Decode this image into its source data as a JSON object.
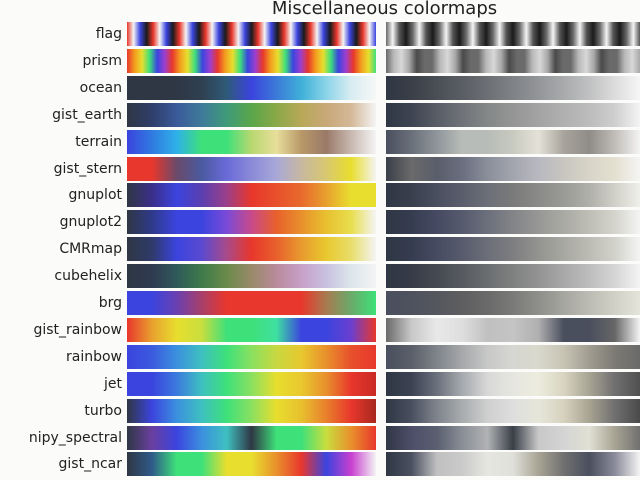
{
  "title": "Miscellaneous colormaps",
  "colormaps": [
    {
      "name": "flag",
      "stops": [
        "#e8372c",
        "#f4f4f4",
        "#3b44de",
        "#1b1b1b",
        "#e8372c",
        "#f4f4f4",
        "#3b44de",
        "#1b1b1b",
        "#e8372c",
        "#f4f4f4",
        "#3b44de",
        "#1b1b1b",
        "#e8372c",
        "#f4f4f4",
        "#3b44de",
        "#1b1b1b",
        "#e8372c",
        "#f4f4f4",
        "#3b44de",
        "#1b1b1b",
        "#e8372c",
        "#f4f4f4",
        "#3b44de",
        "#1b1b1b",
        "#e8372c",
        "#f4f4f4",
        "#3b44de",
        "#1b1b1b",
        "#e8372c",
        "#f4f4f4",
        "#3b44de",
        "#1b1b1b",
        "#e8372c",
        "#f4f4f4",
        "#3b44de",
        "#1b1b1b",
        "#e8372c",
        "#f4f4f4",
        "#3b44de"
      ],
      "grays": [
        "#6a6a6a",
        "#f4f4f4",
        "#555555",
        "#1b1b1b",
        "#6a6a6a",
        "#f4f4f4",
        "#555555",
        "#1b1b1b",
        "#6a6a6a",
        "#f4f4f4",
        "#555555",
        "#1b1b1b",
        "#6a6a6a",
        "#f4f4f4",
        "#555555",
        "#1b1b1b",
        "#6a6a6a",
        "#f4f4f4",
        "#555555",
        "#1b1b1b",
        "#6a6a6a",
        "#f4f4f4",
        "#555555",
        "#1b1b1b",
        "#6a6a6a",
        "#f4f4f4",
        "#555555",
        "#1b1b1b",
        "#6a6a6a",
        "#f4f4f4",
        "#555555",
        "#1b1b1b",
        "#6a6a6a",
        "#f4f4f4",
        "#555555",
        "#1b1b1b",
        "#6a6a6a",
        "#f4f4f4",
        "#555555"
      ]
    },
    {
      "name": "prism",
      "stops": [
        "#e8372c",
        "#f39c1e",
        "#e8de2e",
        "#3ee07a",
        "#3b44de",
        "#9b3fd0",
        "#e8372c",
        "#f39c1e",
        "#e8de2e",
        "#3ee07a",
        "#3b44de",
        "#9b3fd0",
        "#e8372c",
        "#f39c1e",
        "#e8de2e",
        "#3ee07a",
        "#3b44de",
        "#9b3fd0",
        "#e8372c",
        "#f39c1e",
        "#e8de2e",
        "#3ee07a",
        "#3b44de",
        "#9b3fd0",
        "#e8372c",
        "#f39c1e",
        "#e8de2e",
        "#3ee07a",
        "#3b44de",
        "#9b3fd0",
        "#e8372c",
        "#f39c1e",
        "#e8de2e",
        "#3ee07a"
      ],
      "grays": [
        "#6a6a6a",
        "#b8b8b8",
        "#d8d8d8",
        "#a8a8a8",
        "#4a4a4a",
        "#6a6a6a",
        "#6a6a6a",
        "#b8b8b8",
        "#d8d8d8",
        "#a8a8a8",
        "#4a4a4a",
        "#6a6a6a",
        "#6a6a6a",
        "#b8b8b8",
        "#d8d8d8",
        "#a8a8a8",
        "#4a4a4a",
        "#6a6a6a",
        "#6a6a6a",
        "#b8b8b8",
        "#d8d8d8",
        "#a8a8a8",
        "#4a4a4a",
        "#6a6a6a",
        "#6a6a6a",
        "#b8b8b8",
        "#d8d8d8",
        "#a8a8a8",
        "#4a4a4a",
        "#6a6a6a",
        "#6a6a6a",
        "#b8b8b8",
        "#d8d8d8",
        "#a8a8a8"
      ]
    },
    {
      "name": "ocean",
      "stops": [
        "#2f3744",
        "#2f3744",
        "#2f3744",
        "#2f4050",
        "#2f5a78",
        "#3b44de",
        "#3b7ad8",
        "#3fb0d8",
        "#8ad4e8",
        "#d8ecf2",
        "#f6f8f6"
      ],
      "grays": [
        "#2f3744",
        "#3a3f48",
        "#4a4f56",
        "#5a5e64",
        "#6c6f74",
        "#7f8286",
        "#939598",
        "#a9aaac",
        "#c0c1c2",
        "#dcdcdc",
        "#f6f6f6"
      ]
    },
    {
      "name": "gist_earth",
      "stops": [
        "#2f3744",
        "#2f3e6a",
        "#3b5a9a",
        "#3f7a9a",
        "#3e9a7a",
        "#5aa64a",
        "#8aa848",
        "#b8a858",
        "#c8a878",
        "#d4b898",
        "#f4f4f4"
      ],
      "grays": [
        "#2f3744",
        "#3e4452",
        "#585d66",
        "#6f7378",
        "#858888",
        "#959595",
        "#a3a3a3",
        "#b0b0b0",
        "#bcbcbc",
        "#cecece",
        "#f4f4f4"
      ]
    },
    {
      "name": "terrain",
      "stops": [
        "#3b44de",
        "#2f7ae0",
        "#2fb0e8",
        "#3ee07a",
        "#3ee07a",
        "#b8d870",
        "#e8de9a",
        "#b89868",
        "#9a7a68",
        "#c8b8b0",
        "#f4f4f4"
      ],
      "grays": [
        "#4a4f5e",
        "#6a707a",
        "#8f959a",
        "#b8bcb8",
        "#b8bcb8",
        "#c8cac0",
        "#e4e2d8",
        "#a8a49c",
        "#8f8c88",
        "#c0bcb8",
        "#f4f4f4"
      ]
    },
    {
      "name": "gist_stern",
      "stops": [
        "#e8372c",
        "#e8372c",
        "#6a4a6a",
        "#4a5aa0",
        "#6a6ad8",
        "#8a8ad8",
        "#a8a8d8",
        "#c8b8a0",
        "#d8c870",
        "#e8de2e",
        "#f4f4f4"
      ],
      "grays": [
        "#3a3f48",
        "#6a6a6a",
        "#5a5e6a",
        "#6a6f80",
        "#8a8f9a",
        "#a3a5ae",
        "#b8b8c0",
        "#c8c6c0",
        "#d8d4c8",
        "#e4e0d0",
        "#f4f4f4"
      ]
    },
    {
      "name": "gnuplot",
      "stops": [
        "#2f3744",
        "#3b2f8a",
        "#3b44de",
        "#5a3fb0",
        "#9a3f8a",
        "#e8372c",
        "#e8502c",
        "#e86a2c",
        "#e8a02e",
        "#e8de2e",
        "#e8de2e"
      ],
      "grays": [
        "#2f3744",
        "#3a3f4e",
        "#4a4f60",
        "#5a5e6c",
        "#6c6f78",
        "#7a7a7a",
        "#8a8a88",
        "#9a9a96",
        "#b0b0aa",
        "#d0d0c8",
        "#f0f0ea"
      ]
    },
    {
      "name": "gnuplot2",
      "stops": [
        "#2f3744",
        "#2f3a8a",
        "#3b44de",
        "#3b44de",
        "#7a4ad8",
        "#c84a8a",
        "#e8602c",
        "#e8902c",
        "#e8c02e",
        "#e8de4e",
        "#f4f4f4"
      ],
      "grays": [
        "#2f3744",
        "#363c50",
        "#454a62",
        "#555a6e",
        "#6c707c",
        "#838488",
        "#979796",
        "#aaaaa4",
        "#bebeb6",
        "#d4d4cc",
        "#f4f4f4"
      ]
    },
    {
      "name": "CMRmap",
      "stops": [
        "#2f3744",
        "#2f3a6a",
        "#3b44de",
        "#5a4ad0",
        "#a84a8a",
        "#e8372c",
        "#e8602c",
        "#e89a2e",
        "#e8c82e",
        "#e8de6a",
        "#f4f4f4"
      ],
      "grays": [
        "#2f3744",
        "#363c50",
        "#464b62",
        "#575b6c",
        "#6c6f78",
        "#7e7e80",
        "#939390",
        "#a8a8a2",
        "#bcbcb4",
        "#d2d2ca",
        "#f4f4f4"
      ]
    },
    {
      "name": "cubehelix",
      "stops": [
        "#2f3744",
        "#2f3a50",
        "#2f5a5a",
        "#3e7a4a",
        "#6a8a4a",
        "#9a8a6a",
        "#b88a9a",
        "#c8a0c8",
        "#c8c0e0",
        "#dce6ea",
        "#f4f4f4"
      ],
      "grays": [
        "#2f3744",
        "#363b48",
        "#454a52",
        "#575b60",
        "#6b6e70",
        "#7f8080",
        "#939393",
        "#a8a8a8",
        "#bdbdbd",
        "#d5d5d5",
        "#f4f4f4"
      ]
    },
    {
      "name": "brg",
      "stops": [
        "#3b44de",
        "#3b44de",
        "#6a40b0",
        "#a83f6a",
        "#e8372c",
        "#e8372c",
        "#e8372c",
        "#e8372c",
        "#a87a50",
        "#6aaa6a",
        "#3ee07a"
      ],
      "grays": [
        "#4a4f5e",
        "#4e525e",
        "#55575e",
        "#5e5e60",
        "#6a6a6a",
        "#7a7a78",
        "#8e8e8a",
        "#a6a6a0",
        "#bcbcb4",
        "#d0d0c6",
        "#e4e4da"
      ]
    },
    {
      "name": "gist_rainbow",
      "stops": [
        "#e8372c",
        "#e8a02e",
        "#e8de2e",
        "#c8de3e",
        "#3ee07a",
        "#3ee07a",
        "#3ee0a0",
        "#3b44de",
        "#3b44de",
        "#6a3fd0",
        "#e8372c"
      ],
      "grays": [
        "#6a6a6a",
        "#c8c8c8",
        "#e8e8e8",
        "#dedede",
        "#c0c0c0",
        "#c4c4c4",
        "#b0b0b0",
        "#4a4f5e",
        "#4a4f5e",
        "#666666",
        "#f4f4f4"
      ]
    },
    {
      "name": "rainbow",
      "stops": [
        "#3b44de",
        "#3b5ade",
        "#3b90de",
        "#3ec0c0",
        "#3ee07a",
        "#8ae060",
        "#c8d840",
        "#e8c82e",
        "#e8902c",
        "#e8502c",
        "#e8372c"
      ],
      "grays": [
        "#4a4f5e",
        "#5a5f6a",
        "#7f848a",
        "#a6a8aa",
        "#c8c8c8",
        "#d6d6d2",
        "#d8d8cc",
        "#c8c4b4",
        "#a09c90",
        "#7c7a74",
        "#6a6a6a"
      ]
    },
    {
      "name": "jet",
      "stops": [
        "#3b44de",
        "#3b44de",
        "#3b7ade",
        "#3ec0c0",
        "#3ee07a",
        "#8ae060",
        "#e8de2e",
        "#e8c82e",
        "#e8902c",
        "#e8372c",
        "#c82a24"
      ],
      "grays": [
        "#2f3744",
        "#3c4252",
        "#6a707c",
        "#a6aaae",
        "#d8d8d8",
        "#e6e6e0",
        "#ececde",
        "#d8d4c0",
        "#a8a494",
        "#707070",
        "#505050"
      ]
    },
    {
      "name": "turbo",
      "stops": [
        "#2f3744",
        "#3b44de",
        "#3b90de",
        "#3ec0c0",
        "#3ee07a",
        "#8ae060",
        "#e8de2e",
        "#e8c02e",
        "#e8802c",
        "#e8372c",
        "#a8281e"
      ],
      "grays": [
        "#2f3744",
        "#4a4f60",
        "#7f848c",
        "#a8acae",
        "#cfcfcf",
        "#dedede",
        "#e6e6da",
        "#d6d2be",
        "#a8a492",
        "#707070",
        "#4a4a4a"
      ]
    },
    {
      "name": "nipy_spectral",
      "stops": [
        "#2f3744",
        "#6a3fa0",
        "#3b44de",
        "#3b90de",
        "#3ec0c0",
        "#2f3744",
        "#3ee07a",
        "#3ee07a",
        "#c8de3e",
        "#e8902c",
        "#e8372c"
      ],
      "grays": [
        "#2f3744",
        "#4e4e6a",
        "#5a5f70",
        "#8a8e96",
        "#b0b2b4",
        "#3a3f48",
        "#c8c8c8",
        "#d4d4d4",
        "#e0e0d4",
        "#a8a494",
        "#707070"
      ]
    },
    {
      "name": "gist_ncar",
      "stops": [
        "#2f3744",
        "#2f5a8a",
        "#3ee07a",
        "#3ee07a",
        "#e8de2e",
        "#e8de2e",
        "#e8902c",
        "#e8372c",
        "#3b44de",
        "#c83fd0",
        "#f4f4f4"
      ],
      "grays": [
        "#2f3744",
        "#4a5060",
        "#c0c0c0",
        "#cacaca",
        "#e6e6e0",
        "#e0e0da",
        "#a8a494",
        "#707070",
        "#4a4f5e",
        "#8a8a9a",
        "#f4f4f4"
      ]
    }
  ]
}
